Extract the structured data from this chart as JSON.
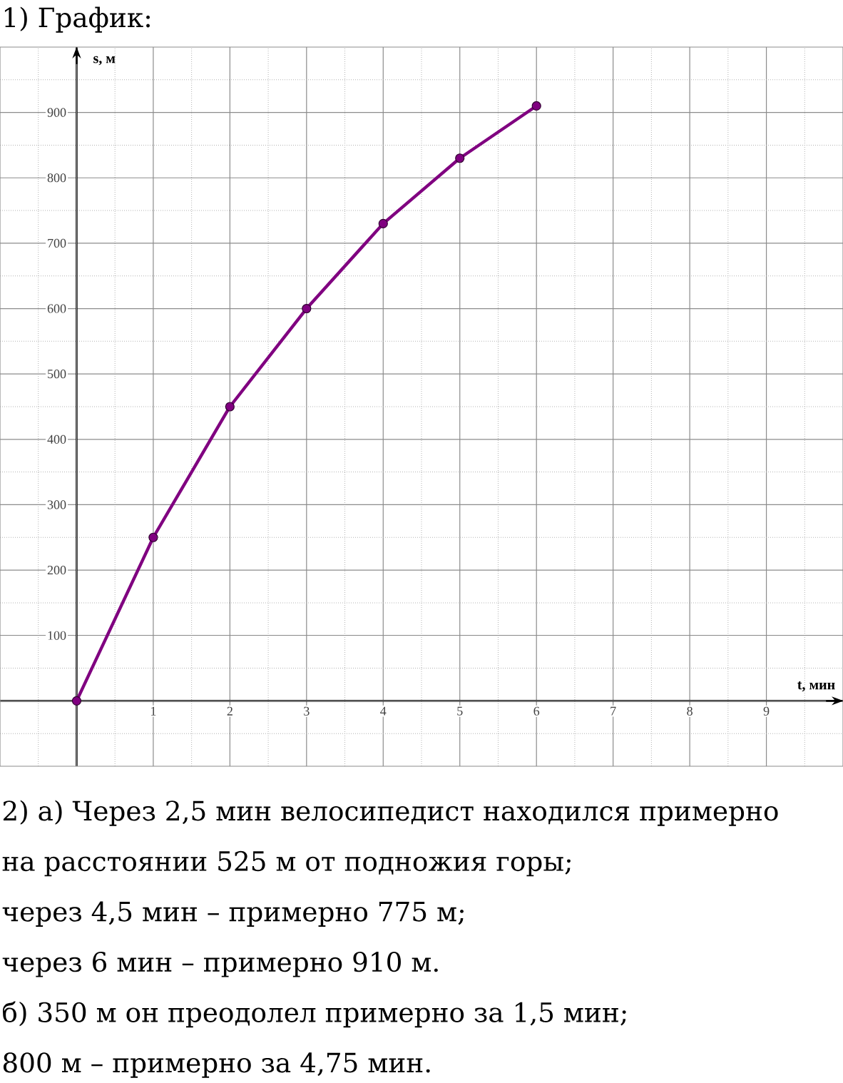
{
  "chart_data": {
    "type": "line",
    "title": "1) График:",
    "xlabel": "t, мин",
    "ylabel": "s, м",
    "x": [
      0,
      1,
      2,
      3,
      4,
      5,
      6
    ],
    "values": [
      0,
      250,
      450,
      600,
      730,
      830,
      910
    ],
    "color": "#800080",
    "marker": "circle",
    "line_style": "solid",
    "xlim": [
      -1,
      10
    ],
    "ylim": [
      -100,
      1000
    ],
    "xticks": [
      1,
      2,
      3,
      4,
      5,
      6,
      7,
      8,
      9
    ],
    "yticks": [
      100,
      200,
      300,
      400,
      500,
      600,
      700,
      800,
      900
    ],
    "grid": true,
    "annotations": [
      "2) а) Через 2,5 мин велосипедист находился примерно",
      "на расстоянии 525 м от подножия горы;",
      "через 4,5 мин – примерно 775 м;",
      "через 6 мин – примерно 910 м.",
      "б) 350 м он преодолел примерно за 1,5 мин;",
      "800 м – примерно за 4,75 мин."
    ]
  }
}
